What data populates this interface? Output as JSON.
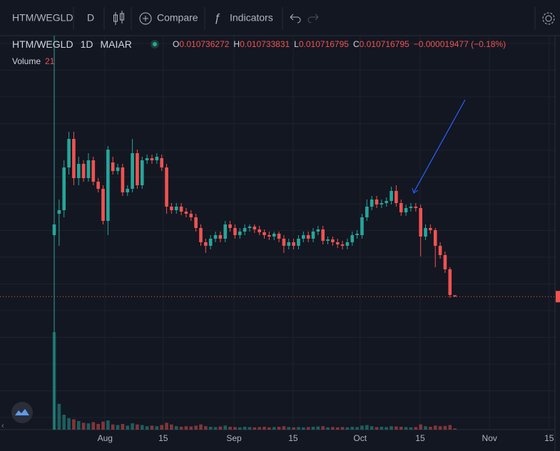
{
  "toolbar": {
    "symbol": "HTM/WEGLD",
    "interval": "D",
    "compare": "Compare",
    "indicators": "Indicators"
  },
  "chart_data": {
    "type": "candlestick",
    "legend": {
      "symbol": "HTM/WEGLD",
      "interval": "1D",
      "exchange": "MAIAR",
      "labels": [
        "O",
        "H",
        "L",
        "C"
      ],
      "change": "−0.000019477 (−0.18%)",
      "volume_label": "Volume"
    },
    "up_color": "#26a69a",
    "down_color": "#ef5350",
    "xlim": [
      -11.1,
      102.5
    ],
    "xticks": [
      {
        "value": 10.4,
        "label": "Aug"
      },
      {
        "value": 22.3,
        "label": "15"
      },
      {
        "value": 36.8,
        "label": "Sep"
      },
      {
        "value": 48.9,
        "label": "15"
      },
      {
        "value": 62.6,
        "label": "Oct"
      },
      {
        "value": 74.9,
        "label": "15"
      },
      {
        "value": 89.1,
        "label": "Nov"
      },
      {
        "value": 101.3,
        "label": "15"
      }
    ],
    "ylim": [
      0.00888,
      0.01438
    ],
    "volume_ylim": [
      0,
      2000
    ],
    "open": [
      0.01158,
      0.01188,
      0.01193,
      0.01253,
      0.01293,
      0.01238,
      0.01258,
      0.01238,
      0.01263,
      0.01233,
      0.01223,
      0.01178,
      0.0126,
      0.01248,
      0.01253,
      0.01218,
      0.01223,
      0.01273,
      0.01228,
      0.01263,
      0.01266,
      0.01263,
      0.01266,
      0.01253,
      0.01198,
      0.01193,
      0.01198,
      0.01191,
      0.01188,
      0.01183,
      0.01168,
      0.01148,
      0.01143,
      0.01153,
      0.01158,
      0.01153,
      0.01173,
      0.01168,
      0.01158,
      0.01163,
      0.01168,
      0.0117,
      0.01166,
      0.01162,
      0.01158,
      0.01156,
      0.0116,
      0.01153,
      0.01143,
      0.01148,
      0.01143,
      0.01153,
      0.01158,
      0.01153,
      0.01163,
      0.01166,
      0.0115,
      0.01152,
      0.01148,
      0.01145,
      0.01143,
      0.01148,
      0.01158,
      0.01158,
      0.01183,
      0.01198,
      0.01208,
      0.01201,
      0.01203,
      0.01206,
      0.0122,
      0.01203,
      0.0119,
      0.01196,
      0.01198,
      0.01196,
      0.01156,
      0.01168,
      0.01165,
      0.01143,
      0.0113,
      0.0111,
      0.010736272
    ],
    "high": [
      0.01188,
      0.01208,
      0.01263,
      0.01303,
      0.01303,
      0.01268,
      0.01263,
      0.01273,
      0.01268,
      0.01238,
      0.01228,
      0.01283,
      0.01268,
      0.01258,
      0.01258,
      0.01228,
      0.01293,
      0.01278,
      0.01268,
      0.01271,
      0.01271,
      0.01273,
      0.01271,
      0.01258,
      0.01203,
      0.01203,
      0.01203,
      0.01196,
      0.01193,
      0.01188,
      0.01173,
      0.01153,
      0.01158,
      0.01163,
      0.01163,
      0.01178,
      0.01178,
      0.01173,
      0.01168,
      0.01173,
      0.01173,
      0.01173,
      0.01171,
      0.01166,
      0.01163,
      0.01163,
      0.01163,
      0.01158,
      0.01153,
      0.01153,
      0.01158,
      0.01163,
      0.01163,
      0.01168,
      0.01171,
      0.01171,
      0.01156,
      0.01156,
      0.01153,
      0.0115,
      0.01153,
      0.01163,
      0.01165,
      0.01188,
      0.01208,
      0.01213,
      0.01213,
      0.01208,
      0.01211,
      0.01226,
      0.01228,
      0.01208,
      0.01201,
      0.01203,
      0.01203,
      0.01201,
      0.01173,
      0.01173,
      0.01168,
      0.01148,
      0.01135,
      0.01113,
      0.010733831
    ],
    "low": [
      0.01143,
      0.01143,
      0.01183,
      0.01243,
      0.01228,
      0.01228,
      0.01233,
      0.01233,
      0.01228,
      0.01218,
      0.01173,
      0.01158,
      0.01243,
      0.01243,
      0.01213,
      0.01213,
      0.01218,
      0.01223,
      0.01223,
      0.01258,
      0.01258,
      0.01258,
      0.01248,
      0.01188,
      0.01188,
      0.01188,
      0.01186,
      0.01183,
      0.01178,
      0.01163,
      0.01143,
      0.01133,
      0.01138,
      0.01148,
      0.01148,
      0.01148,
      0.01163,
      0.01153,
      0.01153,
      0.01158,
      0.01163,
      0.01161,
      0.01158,
      0.01153,
      0.01151,
      0.01151,
      0.01148,
      0.01133,
      0.01138,
      0.01138,
      0.01138,
      0.01148,
      0.01148,
      0.01148,
      0.01158,
      0.01145,
      0.01145,
      0.01143,
      0.0114,
      0.01138,
      0.01138,
      0.01143,
      0.01153,
      0.01153,
      0.01178,
      0.01193,
      0.01196,
      0.01196,
      0.01198,
      0.01201,
      0.01198,
      0.01185,
      0.01185,
      0.01191,
      0.01191,
      0.01128,
      0.01151,
      0.0116,
      0.01113,
      0.01125,
      0.01105,
      0.0107,
      0.010716795
    ],
    "close": [
      0.01173,
      0.01193,
      0.01253,
      0.01293,
      0.01238,
      0.01258,
      0.01238,
      0.01263,
      0.01233,
      0.01223,
      0.01178,
      0.01278,
      0.01248,
      0.01253,
      0.01218,
      0.01223,
      0.01273,
      0.01228,
      0.01263,
      0.01266,
      0.01263,
      0.01268,
      0.01253,
      0.01198,
      0.01193,
      0.01198,
      0.01191,
      0.01188,
      0.01183,
      0.01168,
      0.01148,
      0.01143,
      0.01153,
      0.01158,
      0.01153,
      0.01173,
      0.01168,
      0.01158,
      0.01163,
      0.01168,
      0.0117,
      0.01166,
      0.01162,
      0.01158,
      0.01156,
      0.0116,
      0.01153,
      0.01143,
      0.01148,
      0.01143,
      0.01153,
      0.01158,
      0.01153,
      0.01163,
      0.01166,
      0.0115,
      0.01152,
      0.01148,
      0.01145,
      0.01143,
      0.01148,
      0.01158,
      0.0116,
      0.01183,
      0.01198,
      0.01208,
      0.01201,
      0.01203,
      0.01206,
      0.0122,
      0.01203,
      0.0119,
      0.01196,
      0.01198,
      0.01196,
      0.01156,
      0.01168,
      0.01165,
      0.01143,
      0.0113,
      0.0111,
      0.01074,
      0.010716795
    ],
    "volume": [
      1700,
      450,
      260,
      200,
      180,
      150,
      120,
      110,
      130,
      100,
      140,
      160,
      90,
      80,
      100,
      70,
      110,
      90,
      80,
      60,
      70,
      60,
      80,
      120,
      90,
      60,
      50,
      60,
      55,
      70,
      90,
      60,
      50,
      45,
      55,
      70,
      50,
      45,
      40,
      50,
      45,
      40,
      45,
      50,
      40,
      45,
      50,
      60,
      45,
      40,
      45,
      40,
      45,
      50,
      55,
      60,
      40,
      45,
      40,
      45,
      40,
      50,
      45,
      70,
      80,
      60,
      45,
      50,
      45,
      60,
      55,
      50,
      45,
      40,
      45,
      90,
      60,
      50,
      70,
      60,
      65,
      80,
      21
    ]
  }
}
